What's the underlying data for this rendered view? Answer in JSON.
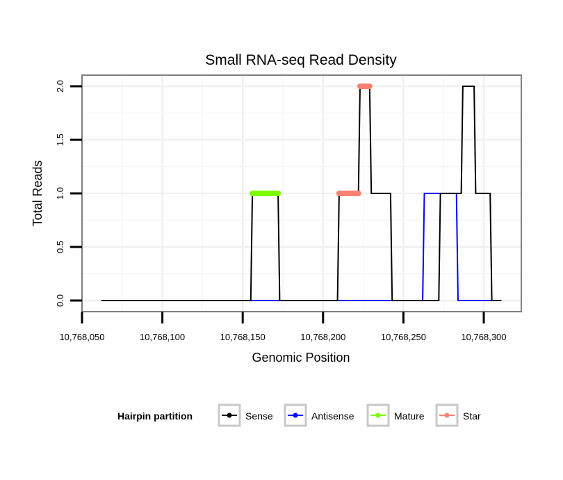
{
  "chart_data": {
    "type": "line",
    "title": "Small RNA-seq Read Density",
    "xlabel": "Genomic Position",
    "ylabel": "Total Reads",
    "xlim": [
      10768050,
      10768315
    ],
    "ylim": [
      0,
      2.05
    ],
    "x_ticks": [
      10768050,
      10768100,
      10768150,
      10768200,
      10768250,
      10768300
    ],
    "x_tick_labels": [
      "10,768,050",
      "10,768,100",
      "10,768,150",
      "10,768,200",
      "10,768,250",
      "10,768,300"
    ],
    "y_ticks": [
      0,
      0.5,
      1,
      1.5,
      2
    ],
    "y_tick_labels": [
      "0.0",
      "0.5",
      "1.0",
      "1.5",
      "2.0"
    ],
    "grid": true,
    "legend": {
      "title": "Hairpin partition",
      "position": "bottom",
      "entries": [
        {
          "name": "Sense",
          "color": "#000000"
        },
        {
          "name": "Antisense",
          "color": "#0000FF"
        },
        {
          "name": "Mature",
          "color": "#7CFC00"
        },
        {
          "name": "Star",
          "color": "#FA8072"
        }
      ]
    },
    "series": [
      {
        "name": "Antisense",
        "color": "#0000FF",
        "style": "line",
        "x": [
          10768062,
          10768262,
          10768263,
          10768283,
          10768284,
          10768306
        ],
        "y": [
          0,
          0,
          1,
          1,
          0,
          0
        ]
      },
      {
        "name": "Sense",
        "color": "#000000",
        "style": "line",
        "x": [
          10768062,
          10768155,
          10768156,
          10768172,
          10768173,
          10768209,
          10768210,
          10768222,
          10768223,
          10768229,
          10768230,
          10768242,
          10768243,
          10768272,
          10768273,
          10768286,
          10768287,
          10768294,
          10768295,
          10768304,
          10768305,
          10768311
        ],
        "y": [
          0,
          0,
          1,
          1,
          0,
          0,
          1,
          1,
          2,
          2,
          1,
          1,
          0,
          0,
          1,
          1,
          2,
          2,
          1,
          1,
          0,
          0
        ]
      },
      {
        "name": "Mature",
        "color": "#7CFC00",
        "style": "thick",
        "segments": [
          {
            "x": [
              10768156,
              10768172
            ],
            "y": 1
          }
        ]
      },
      {
        "name": "Star",
        "color": "#FA8072",
        "style": "thick",
        "segments": [
          {
            "x": [
              10768210,
              10768222
            ],
            "y": 1
          },
          {
            "x": [
              10768223,
              10768229
            ],
            "y": 2
          }
        ]
      }
    ]
  }
}
